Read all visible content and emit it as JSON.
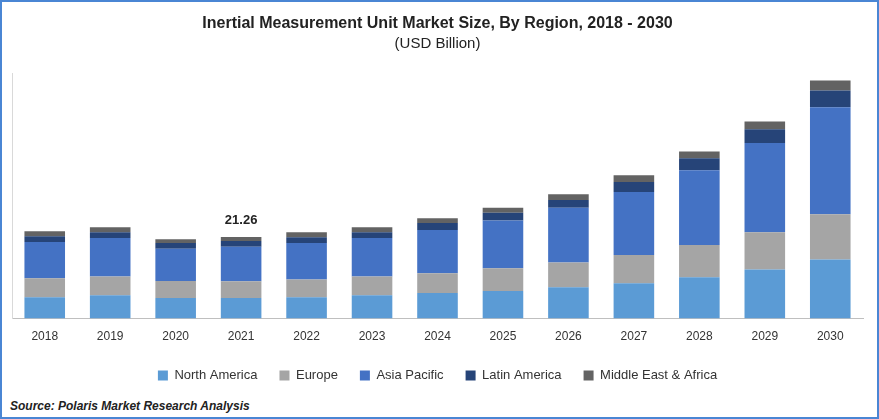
{
  "chart_data": {
    "type": "bar",
    "title": "Inertial Measurement Unit Market Size, By Region, 2018 - 2030",
    "subtitle": "(USD Billion)",
    "source": "Source: Polaris Market Research Analysis",
    "categories": [
      "2018",
      "2019",
      "2020",
      "2021",
      "2022",
      "2023",
      "2024",
      "2025",
      "2026",
      "2027",
      "2028",
      "2029",
      "2030"
    ],
    "series": [
      {
        "name": "North America",
        "color": "#5b9bd5",
        "values": [
          5.6,
          6.1,
          5.4,
          5.4,
          5.6,
          6.1,
          6.7,
          7.2,
          8.2,
          9.2,
          10.8,
          12.8,
          15.4
        ]
      },
      {
        "name": "Europe",
        "color": "#a5a5a5",
        "values": [
          4.9,
          4.9,
          4.4,
          4.35,
          4.6,
          4.9,
          5.1,
          5.9,
          6.4,
          7.4,
          8.4,
          9.7,
          11.8
        ]
      },
      {
        "name": "Asia Pacific",
        "color": "#4472c4",
        "values": [
          9.5,
          10.0,
          8.4,
          8.96,
          9.5,
          10.0,
          11.3,
          12.5,
          14.3,
          16.4,
          19.5,
          23.3,
          27.9
        ]
      },
      {
        "name": "Latin America",
        "color": "#264478",
        "values": [
          1.5,
          1.5,
          1.5,
          1.55,
          1.5,
          1.5,
          1.8,
          2.0,
          2.0,
          2.6,
          3.1,
          3.6,
          4.4
        ]
      },
      {
        "name": "Middle East & Africa",
        "color": "#636363",
        "values": [
          1.3,
          1.3,
          1.0,
          1.0,
          1.3,
          1.3,
          1.3,
          1.3,
          1.5,
          1.8,
          1.8,
          2.0,
          2.6
        ]
      }
    ],
    "annotations": [
      {
        "text": "21.26",
        "x": "2021",
        "y": 21.26
      }
    ],
    "ylim": [
      0,
      64
    ],
    "stacked": true,
    "grid": false,
    "legend": "bottom",
    "tick_labels": "x"
  }
}
